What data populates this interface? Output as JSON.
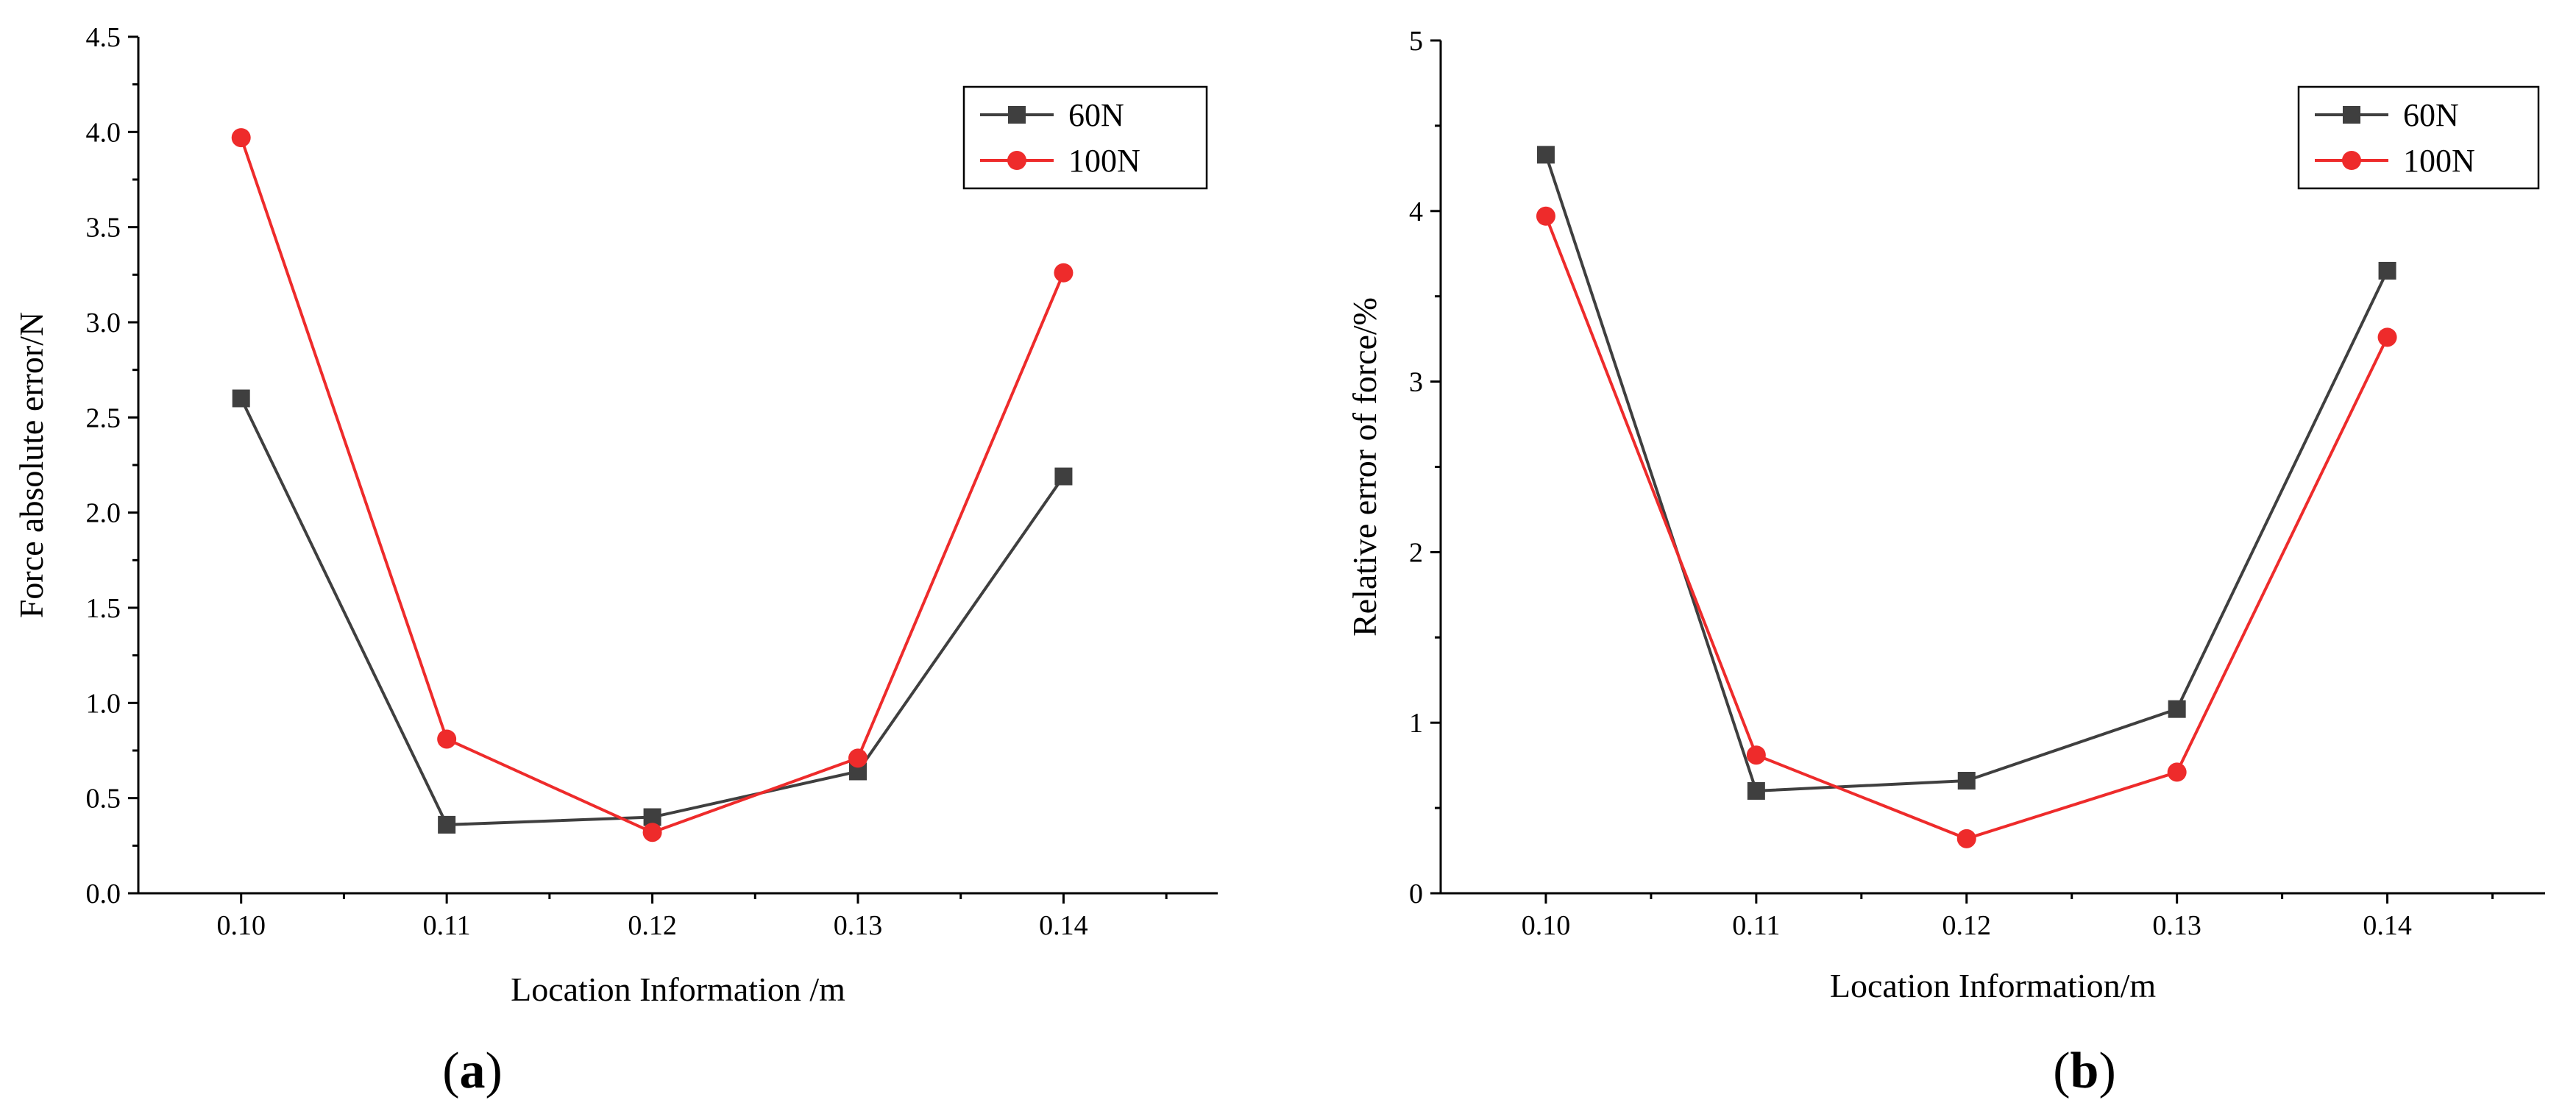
{
  "chart_data": [
    {
      "type": "line",
      "panel": "a",
      "caption": "a",
      "x": [
        0.1,
        0.11,
        0.12,
        0.13,
        0.14
      ],
      "xtick_labels": [
        "0.10",
        "0.11",
        "0.12",
        "0.13",
        "0.14"
      ],
      "xlim": [
        0.095,
        0.1475
      ],
      "ylim": [
        0,
        4.5
      ],
      "yticks": [
        0,
        0.5,
        1.0,
        1.5,
        2.0,
        2.5,
        3.0,
        3.5,
        4.0,
        4.5
      ],
      "ytick_labels": [
        "0.0",
        "0.5",
        "1.0",
        "1.5",
        "2.0",
        "2.5",
        "3.0",
        "3.5",
        "4.0",
        "4.5"
      ],
      "xlabel": "Location Information /m",
      "ylabel": "Force absolute error/N",
      "legend_position": "top-right",
      "series": [
        {
          "name": "60N",
          "color": "#3f3f3f",
          "marker": "square",
          "values": [
            2.6,
            0.36,
            0.4,
            0.64,
            2.19
          ]
        },
        {
          "name": "100N",
          "color": "#ee2b2b",
          "marker": "circle",
          "values": [
            3.97,
            0.81,
            0.32,
            0.71,
            3.26
          ]
        }
      ]
    },
    {
      "type": "line",
      "panel": "b",
      "caption": "b",
      "x": [
        0.1,
        0.11,
        0.12,
        0.13,
        0.14
      ],
      "xtick_labels": [
        "0.10",
        "0.11",
        "0.12",
        "0.13",
        "0.14"
      ],
      "xlim": [
        0.095,
        0.1475
      ],
      "ylim": [
        0,
        5
      ],
      "yticks": [
        0,
        1,
        2,
        3,
        4,
        5
      ],
      "ytick_labels": [
        "0",
        "1",
        "2",
        "3",
        "4",
        "5"
      ],
      "xlabel": "Location Information/m",
      "ylabel": "Relative error of force/%",
      "legend_position": "top-right",
      "series": [
        {
          "name": "60N",
          "color": "#3f3f3f",
          "marker": "square",
          "values": [
            4.33,
            0.6,
            0.66,
            1.08,
            3.65
          ]
        },
        {
          "name": "100N",
          "color": "#ee2b2b",
          "marker": "circle",
          "values": [
            3.97,
            0.81,
            0.32,
            0.71,
            3.26
          ]
        }
      ]
    }
  ]
}
